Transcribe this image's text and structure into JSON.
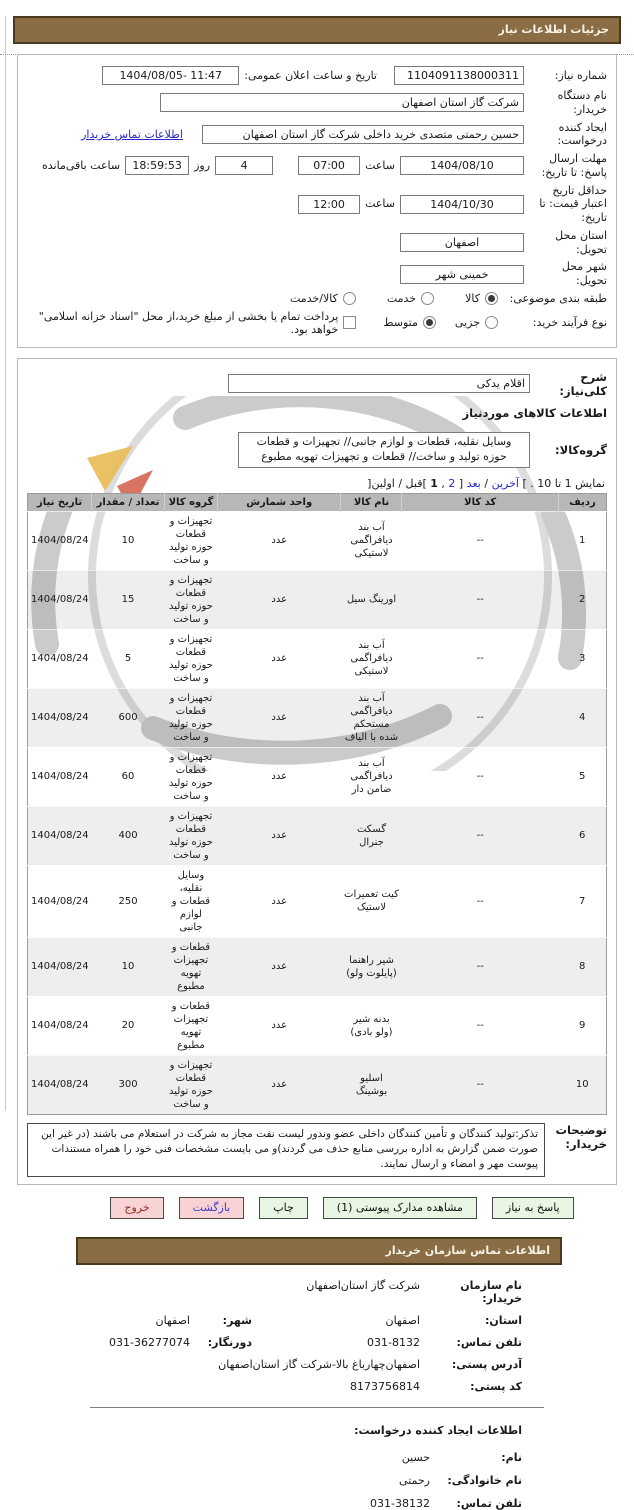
{
  "page": {
    "main_header": "جزئیات اطلاعات نیاز",
    "contact_header": "اطلاعات تماس سازمان خریدار"
  },
  "colors": {
    "header_brown": "#8a6d45",
    "link_blue": "#2626cc",
    "button_green": "#e9f6e4",
    "button_pink": "#f8d2d4",
    "table_header_gray": "#b7b7b7"
  },
  "info": {
    "need_number_label": "شماره نیاز:",
    "need_number": "1104091138000311",
    "announce_label": "تاریخ و ساعت اعلان عمومی:",
    "announce_value": "1404/08/05- 11:47",
    "buyer_org_label": "نام دستگاه خریدار:",
    "buyer_org": "شرکت گاز استان اصفهان",
    "creator_label": "ایجاد کننده درخواست:",
    "creator": "حسین رحمتی  متصدی خرید داخلی شرکت گاز استان اصفهان",
    "contact_link": "اطلاعات تماس خریدار",
    "deadline_label": "مهلت ارسال پاسخ: تا تاریخ:",
    "deadline_date": "1404/08/10",
    "hour_label": "ساعت",
    "deadline_time": "07:00",
    "days_remaining": "4",
    "day_label": "روز",
    "time_remaining": "18:59:53",
    "remaining_label": "ساعت باقی‌مانده",
    "validity_label": "حداقل تاریخ اعتبار قیمت: تا تاریخ:",
    "validity_date": "1404/10/30",
    "validity_time": "12:00",
    "province_label": "استان محل تحویل:",
    "province": "اصفهان",
    "city_label": "شهر محل تحویل:",
    "city": "خمینی شهر",
    "classification_label": "طبقه بندی موضوعی:",
    "classification_options": [
      {
        "label": "کالا",
        "selected": true
      },
      {
        "label": "خدمت",
        "selected": false
      },
      {
        "label": "کالا/خدمت",
        "selected": false
      }
    ],
    "process_label": "نوع فرآیند خرید:",
    "process_options": [
      {
        "label": "جزیی",
        "selected": false
      },
      {
        "label": "متوسط",
        "selected": true
      }
    ],
    "treasury_label": "پرداخت تمام یا بخشی از  مبلغ خرید،از محل \"اسناد خزانه اسلامی\" خواهد بود.",
    "treasury_checked": false
  },
  "goods": {
    "desc_label": "شرح کلی‌نیاز:",
    "desc_value": "اقلام یدکی",
    "section_heading": "اطلاعات کالاهای موردنیاز",
    "group_label": "گروه‌کالا:",
    "group_value": "وسایل  نقلیه، قطعات و لوازم جانبی// تجهیزات و قطعات حوزه تولید و ساخت//  قطعات و تجهیزات تهویه مطبوع",
    "pagination": {
      "prefix": "نمایش 1 تا 10 . ]",
      "last": "آخرین",
      "sep1": " / ",
      "next": "بعد",
      "mid": "[ ",
      "page2": "2",
      "comma": " , ",
      "page1": "1",
      "suffix": " ]قبل / اولین["
    },
    "table": {
      "headers": [
        "ردیف",
        "کد کالا",
        "نام کالا",
        "واحد شمارش",
        "گروه کالا",
        "تعداد / مقدار",
        "تاریخ نیاز"
      ],
      "rows": [
        [
          "1",
          "--",
          "آب بند دیافراگمی لاستیکی",
          "عدد",
          "تجهیزات و قطعات حوزه تولید و ساخت",
          "10",
          "1404/08/24"
        ],
        [
          "2",
          "--",
          "اورینگ سیل",
          "عدد",
          "تجهیزات و قطعات حوزه تولید و ساخت",
          "15",
          "1404/08/24"
        ],
        [
          "3",
          "--",
          "آب بند دیافراگمی لاستیکی",
          "عدد",
          "تجهیزات و قطعات حوزه تولید و ساخت",
          "5",
          "1404/08/24"
        ],
        [
          "4",
          "--",
          "آب بند دیافراگمی مستحکم شده با الیاف",
          "عدد",
          "تجهیزات و قطعات حوزه تولید و ساخت",
          "600",
          "1404/08/24"
        ],
        [
          "5",
          "--",
          "آب بند دیافراگمی  ضامن دار",
          "عدد",
          "تجهیزات و قطعات حوزه تولید و ساخت",
          "60",
          "1404/08/24"
        ],
        [
          "6",
          "--",
          "گسکت جنرال",
          "عدد",
          "تجهیزات و قطعات حوزه تولید و ساخت",
          "400",
          "1404/08/24"
        ],
        [
          "7",
          "--",
          "کیت تعمیرات لاستیک",
          "عدد",
          "وسایل نقلیه، قطعات و لوازم جانبی",
          "250",
          "1404/08/24"
        ],
        [
          "8",
          "--",
          "شیر راهنما (پایلوت ولو)",
          "عدد",
          "قطعات و تجهیزات تهویه مطبوع",
          "10",
          "1404/08/24"
        ],
        [
          "9",
          "--",
          "بدنه شیر (ولو بادی)",
          "عدد",
          "قطعات و تجهیزات تهویه مطبوع",
          "20",
          "1404/08/24"
        ],
        [
          "10",
          "--",
          "اسلیو بوشینگ",
          "عدد",
          "تجهیزات و قطعات حوزه تولید و ساخت",
          "300",
          "1404/08/24"
        ]
      ]
    },
    "notes_label": "توضیحات خریدار:",
    "notes_text": "تذکر:تولید کنندگان و تأمین کنندگان داخلی عضو وندور لیست نفت مجاز به شرکت در استعلام می باشند (در غیر این صورت ضمن گزارش به اداره بررسی منابع حذف می گردند)و می بایست  مشخصات فنی خود را همراه مستندات پیوست مهر و امضاء و ارسال نمایند."
  },
  "buttons": {
    "respond": "پاسخ به نیاز",
    "attachments": "مشاهده مدارک پیوستی (1)",
    "print": "چاپ",
    "back": "بازگشت",
    "exit": "خروج"
  },
  "org_contact": {
    "org_label": "نام سازمان خریدار:",
    "org_value": "شرکت گاز استان‌اصفهان",
    "province_label": "استان:",
    "province_value": "اصفهان",
    "city_label": "شهر:",
    "city_value": "اصفهان",
    "phone_label": "تلفن تماس:",
    "phone_value": "031-8132",
    "fax_label": "دورنگار:",
    "fax_value": "031-36277074",
    "address_label": "آدرس پستی:",
    "address_value": "اصفهان‌چهارباغ بالا-شرکت گاز استان‌اصفهان",
    "postal_label": "کد پستی:",
    "postal_value": "8173756814"
  },
  "creator_info": {
    "heading": "اطلاعات ایجاد کننده درخواست:",
    "first_name_label": "نام:",
    "first_name": "حسین",
    "last_name_label": "نام خانوادگی:",
    "last_name": "رحمتی",
    "phone_label": "تلفن تماس:",
    "phone": "031-38132"
  }
}
